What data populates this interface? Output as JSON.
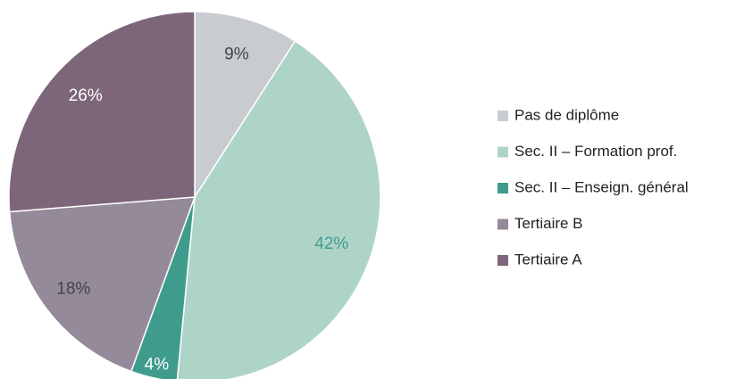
{
  "chart_data": {
    "type": "pie",
    "categories": [
      "Pas de diplôme",
      "Sec. II – Formation prof.",
      "Sec. II – Enseign. général",
      "Tertiaire B",
      "Tertiaire A"
    ],
    "values": [
      9,
      42,
      4,
      18,
      26
    ],
    "value_labels": [
      "9%",
      "42%",
      "4%",
      "18%",
      "26%"
    ],
    "colors": [
      "#c8ccd0",
      "#aed4c8",
      "#3f9c8c",
      "#948a99",
      "#7d6679"
    ],
    "legend": "right"
  }
}
